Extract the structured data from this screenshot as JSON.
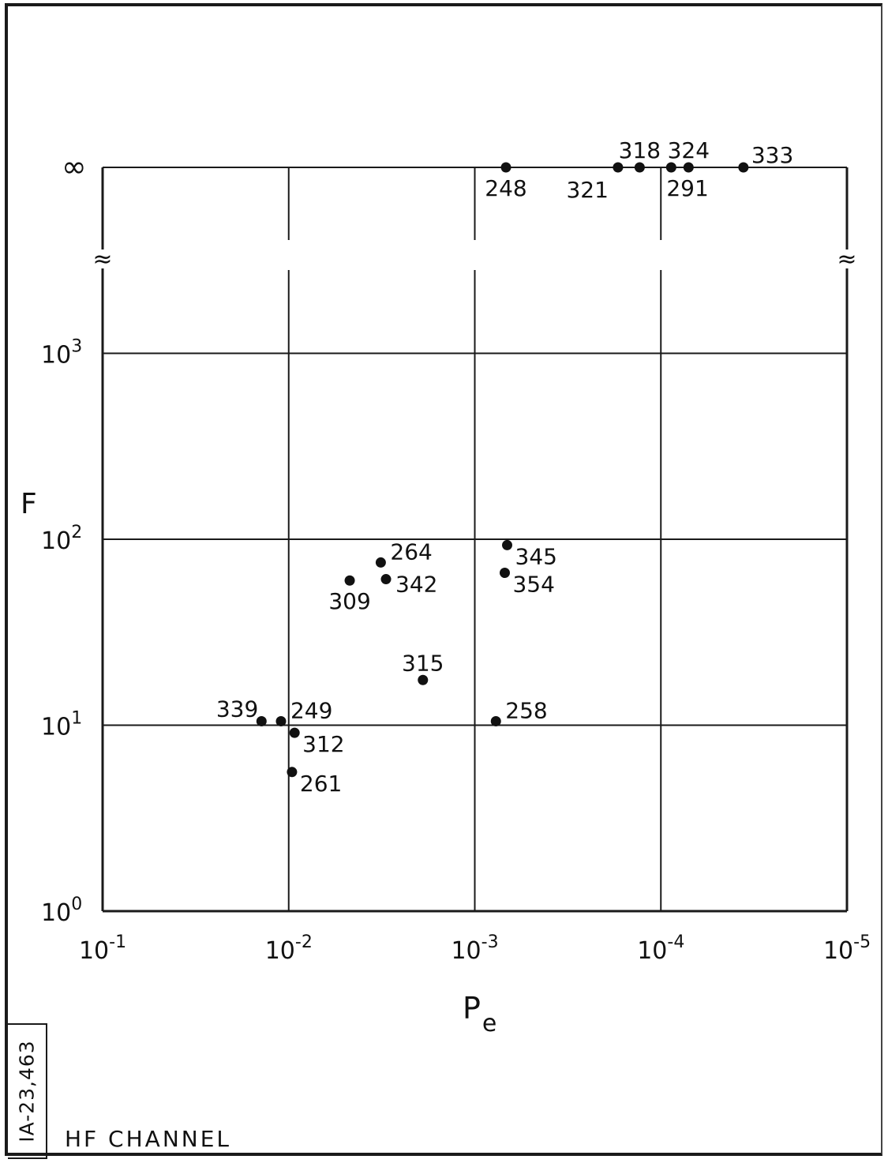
{
  "figure_id": "IA-23,463",
  "caption": "HF CHANNEL",
  "chart_data": {
    "type": "scatter",
    "xlabel": "P",
    "xlabel_sub": "e",
    "ylabel": "F",
    "x_scale": "log",
    "x_reversed": true,
    "x_ticks": [
      {
        "value": 0.1,
        "base": "10",
        "exp": "-1"
      },
      {
        "value": 0.01,
        "base": "10",
        "exp": "-2"
      },
      {
        "value": 0.001,
        "base": "10",
        "exp": "-3"
      },
      {
        "value": 0.0001,
        "base": "10",
        "exp": "-4"
      },
      {
        "value": 1e-05,
        "base": "10",
        "exp": "-5"
      }
    ],
    "y_scale": "log",
    "y_ticks": [
      {
        "value": 1,
        "base": "10",
        "exp": "0"
      },
      {
        "value": 10,
        "base": "10",
        "exp": "1"
      },
      {
        "value": 100,
        "base": "10",
        "exp": "2"
      },
      {
        "value": 1000,
        "base": "10",
        "exp": "3"
      }
    ],
    "y_infinity_label": "∞",
    "axis_break_symbol": "≈",
    "grid": true,
    "points": [
      {
        "label": "248",
        "x": 0.00068,
        "y": "inf",
        "label_pos": "below"
      },
      {
        "label": "321",
        "x": 0.00017,
        "y": "inf",
        "label_pos": "below-left"
      },
      {
        "label": "318",
        "x": 0.00013,
        "y": "inf",
        "label_pos": "above"
      },
      {
        "label": "291",
        "x": 8.8e-05,
        "y": "inf",
        "label_pos": "below-right"
      },
      {
        "label": "324",
        "x": 7.1e-05,
        "y": "inf",
        "label_pos": "above"
      },
      {
        "label": "333",
        "x": 3.6e-05,
        "y": "inf",
        "label_pos": "above-right"
      },
      {
        "label": "264",
        "x": 0.0032,
        "y": 75,
        "label_pos": "right-up"
      },
      {
        "label": "309",
        "x": 0.0047,
        "y": 60,
        "label_pos": "below"
      },
      {
        "label": "342",
        "x": 0.003,
        "y": 61,
        "label_pos": "right"
      },
      {
        "label": "345",
        "x": 0.00067,
        "y": 93,
        "label_pos": "right-down"
      },
      {
        "label": "354",
        "x": 0.00069,
        "y": 66,
        "label_pos": "right-down"
      },
      {
        "label": "315",
        "x": 0.0019,
        "y": 17.5,
        "label_pos": "above"
      },
      {
        "label": "258",
        "x": 0.00077,
        "y": 10.5,
        "label_pos": "right-up"
      },
      {
        "label": "339",
        "x": 0.014,
        "y": 10.5,
        "label_pos": "left-up"
      },
      {
        "label": "249",
        "x": 0.011,
        "y": 10.5,
        "label_pos": "right-up"
      },
      {
        "label": "312",
        "x": 0.0093,
        "y": 9.1,
        "label_pos": "right-down"
      },
      {
        "label": "261",
        "x": 0.0096,
        "y": 5.6,
        "label_pos": "right-down"
      }
    ]
  }
}
